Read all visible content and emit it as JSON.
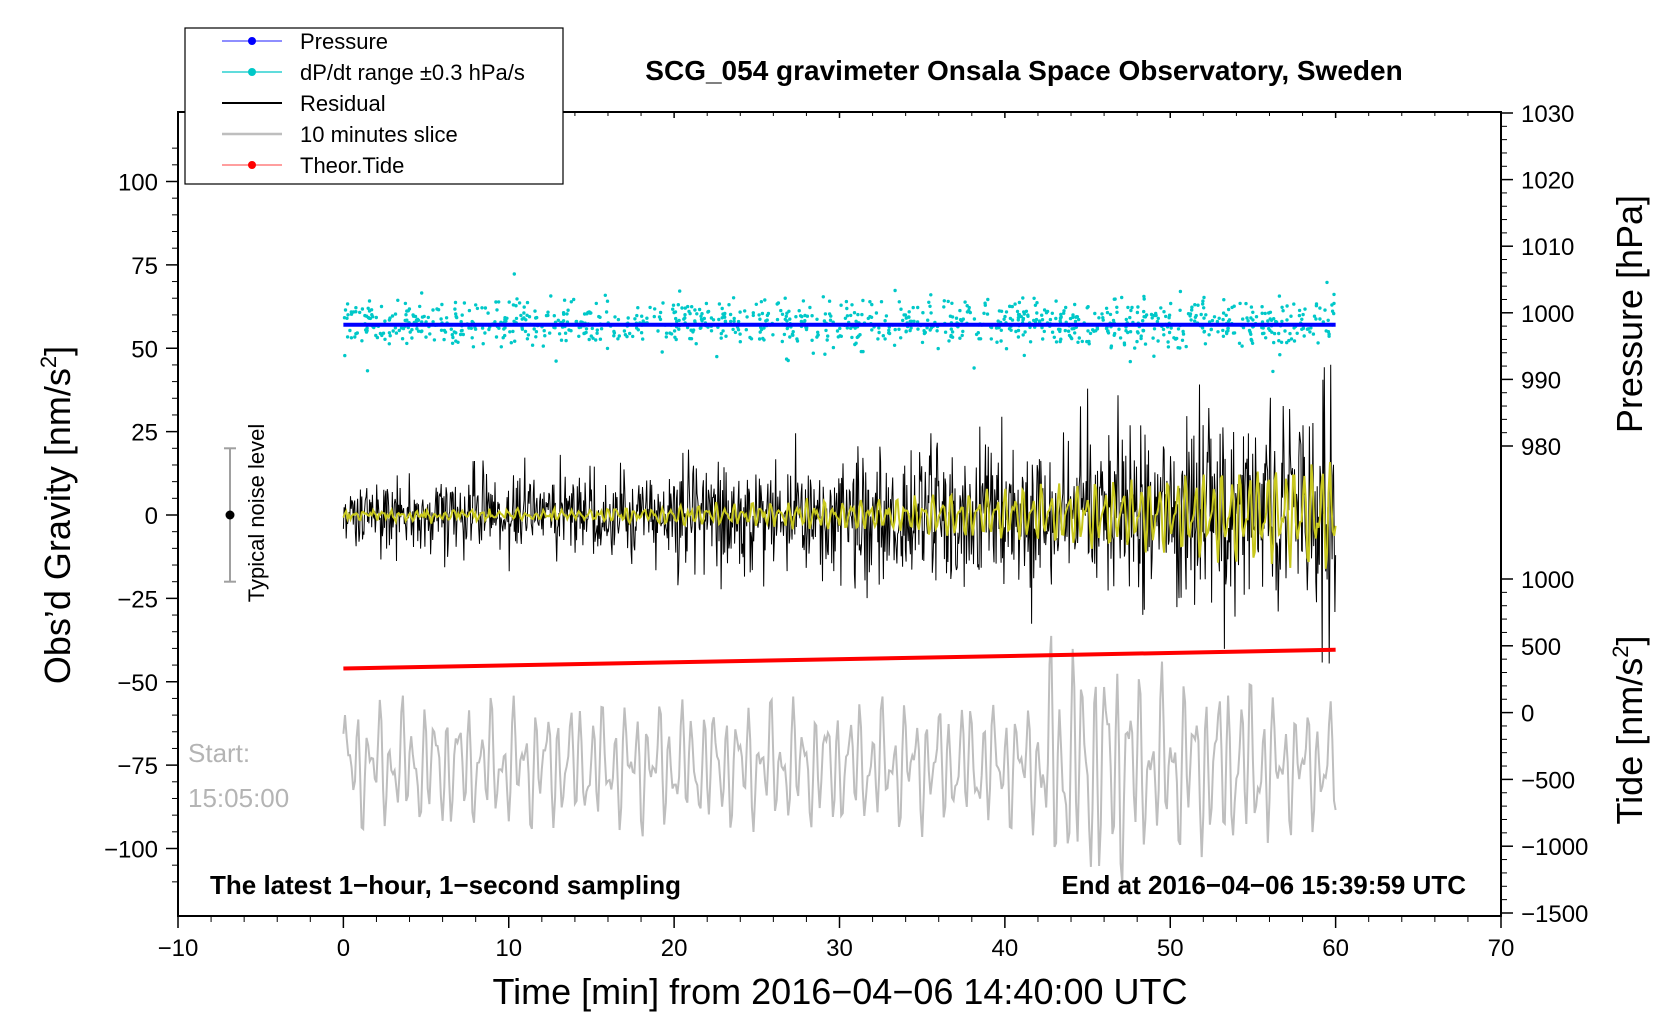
{
  "chart_data": {
    "type": "line",
    "title": "SCG_054 gravimeter Onsala Space Observatory, Sweden",
    "xlabel": "Time [min] from 2016−04−06 14:40:00 UTC",
    "ylabel_left": "Obs’d Gravity [nm/s",
    "ylabel_left_sup": "2",
    "ylabel_left_end": "]",
    "ylabel_right_pressure": "Pressure [hPa]",
    "ylabel_right_tide": "Tide [nm/s",
    "ylabel_right_tide_sup": "2",
    "ylabel_right_tide_end": "]",
    "xlim": [
      -10,
      70
    ],
    "ylim_gravity": [
      -120,
      120
    ],
    "x_ticks": [
      "−10",
      "0",
      "10",
      "20",
      "30",
      "40",
      "50",
      "60",
      "70"
    ],
    "x_tick_values": [
      -10,
      0,
      10,
      20,
      30,
      40,
      50,
      60,
      70
    ],
    "gravity_ticks": [
      "100",
      "75",
      "50",
      "25",
      "0",
      "−25",
      "−50",
      "−75",
      "−100"
    ],
    "gravity_tick_values": [
      100,
      75,
      50,
      25,
      0,
      -25,
      -50,
      -75,
      -100
    ],
    "pressure_axis_range": [
      980,
      1030
    ],
    "pressure_ticks": [
      "1030",
      "1020",
      "1010",
      "1000",
      "990",
      "980"
    ],
    "pressure_tick_values": [
      1030,
      1020,
      1010,
      1000,
      990,
      980
    ],
    "tide_axis_range": [
      -1500,
      1000
    ],
    "tide_ticks": [
      "1000",
      "500",
      "0",
      "−500",
      "−1000",
      "−1500"
    ],
    "tide_tick_values": [
      1000,
      500,
      0,
      -500,
      -1000,
      -1500
    ],
    "legend": [
      {
        "label": "Pressure",
        "color": "#0000ff"
      },
      {
        "label": "dP/dt range ±0.3 hPa/s",
        "color": "#00c8c8"
      },
      {
        "label": "Residual",
        "color": "#000000"
      },
      {
        "label": "10 minutes slice",
        "color": "#bebebe"
      },
      {
        "label": "Theor.Tide",
        "color": "#ff0000"
      }
    ],
    "legend_position": "top-left",
    "annotations": {
      "noise_label": "Typical noise level",
      "noise_center": 0,
      "noise_range": [
        -20,
        20
      ],
      "start_label": "Start:",
      "start_time": "15:05:00",
      "bottom_left": "The latest 1−hour, 1−second sampling",
      "bottom_right": "End at 2016−04−06 15:39:59 UTC"
    },
    "series": [
      {
        "name": "Pressure",
        "unit": "hPa",
        "x": [
          0,
          60
        ],
        "values": [
          998.2,
          998.2
        ]
      },
      {
        "name": "Theor.Tide",
        "unit": "nm/s2",
        "x": [
          0,
          60
        ],
        "values": [
          330,
          470
        ]
      },
      {
        "name": "dP/dt range ±0.3 hPa/s",
        "x_range": [
          0,
          60
        ],
        "center_pressure": 998.5,
        "spread": 3
      },
      {
        "name": "Residual",
        "x_range": [
          0,
          60
        ],
        "amplitude_start": 9,
        "amplitude_end": 28
      },
      {
        "name": "10 minutes slice",
        "x_range": [
          0,
          60
        ],
        "offset": -75,
        "amplitude": 15
      },
      {
        "name": "Smoothed residual",
        "color": "#c8c81e",
        "x_range": [
          0,
          60
        ],
        "amplitude_start": 1,
        "amplitude_end": 18
      }
    ]
  }
}
